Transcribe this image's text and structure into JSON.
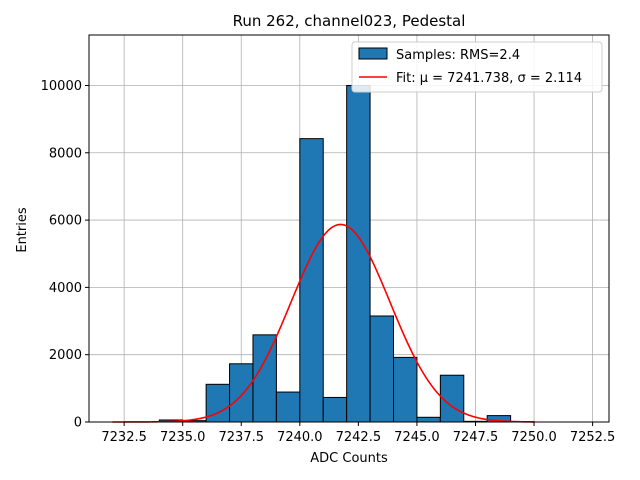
{
  "chart_data": {
    "type": "bar",
    "title": "Run 262, channel023, Pedestal",
    "xlabel": "ADC Counts",
    "ylabel": "Entries",
    "xlim": [
      7231.0,
      7253.2
    ],
    "ylim": [
      0,
      11500
    ],
    "grid": true,
    "legend_position": "top-right",
    "bar_color": "#1f77b4",
    "fit_color": "#ff0000",
    "x_ticks": [
      7232.5,
      7235.0,
      7237.5,
      7240.0,
      7242.5,
      7245.0,
      7247.5,
      7250.0,
      7252.5
    ],
    "x_tick_labels": [
      "7232.5",
      "7235.0",
      "7237.5",
      "7240.0",
      "7242.5",
      "7245.0",
      "7247.5",
      "7250.0",
      "7252.5"
    ],
    "y_ticks": [
      0,
      2000,
      4000,
      6000,
      8000,
      10000
    ],
    "y_tick_labels": [
      "0",
      "2000",
      "4000",
      "6000",
      "8000",
      "10000"
    ],
    "bins": [
      {
        "x0": 7232.0,
        "x1": 7233.0,
        "value": 0
      },
      {
        "x0": 7233.0,
        "x1": 7234.0,
        "value": 0
      },
      {
        "x0": 7234.0,
        "x1": 7235.0,
        "value": 60
      },
      {
        "x0": 7235.0,
        "x1": 7236.0,
        "value": 40
      },
      {
        "x0": 7236.0,
        "x1": 7237.0,
        "value": 1120
      },
      {
        "x0": 7237.0,
        "x1": 7238.0,
        "value": 1730
      },
      {
        "x0": 7238.0,
        "x1": 7239.0,
        "value": 2590
      },
      {
        "x0": 7239.0,
        "x1": 7240.0,
        "value": 890
      },
      {
        "x0": 7240.0,
        "x1": 7241.0,
        "value": 8420
      },
      {
        "x0": 7241.0,
        "x1": 7242.0,
        "value": 730
      },
      {
        "x0": 7242.0,
        "x1": 7243.0,
        "value": 10000
      },
      {
        "x0": 7243.0,
        "x1": 7244.0,
        "value": 3150
      },
      {
        "x0": 7244.0,
        "x1": 7245.0,
        "value": 1920
      },
      {
        "x0": 7245.0,
        "x1": 7246.0,
        "value": 140
      },
      {
        "x0": 7246.0,
        "x1": 7247.0,
        "value": 1390
      },
      {
        "x0": 7247.0,
        "x1": 7248.0,
        "value": 20
      },
      {
        "x0": 7248.0,
        "x1": 7249.0,
        "value": 190
      },
      {
        "x0": 7249.0,
        "x1": 7250.0,
        "value": 10
      },
      {
        "x0": 7250.0,
        "x1": 7251.0,
        "value": 0
      },
      {
        "x0": 7251.0,
        "x1": 7252.0,
        "value": 0
      }
    ],
    "fit": {
      "mu": 7241.738,
      "sigma": 2.114,
      "amplitude": 5870,
      "x_range": [
        7232.0,
        7250.0
      ]
    },
    "legend": [
      {
        "label": "Samples: RMS=2.4",
        "kind": "bar"
      },
      {
        "label": "Fit: μ = 7241.738, σ = 2.114",
        "kind": "line"
      }
    ]
  }
}
